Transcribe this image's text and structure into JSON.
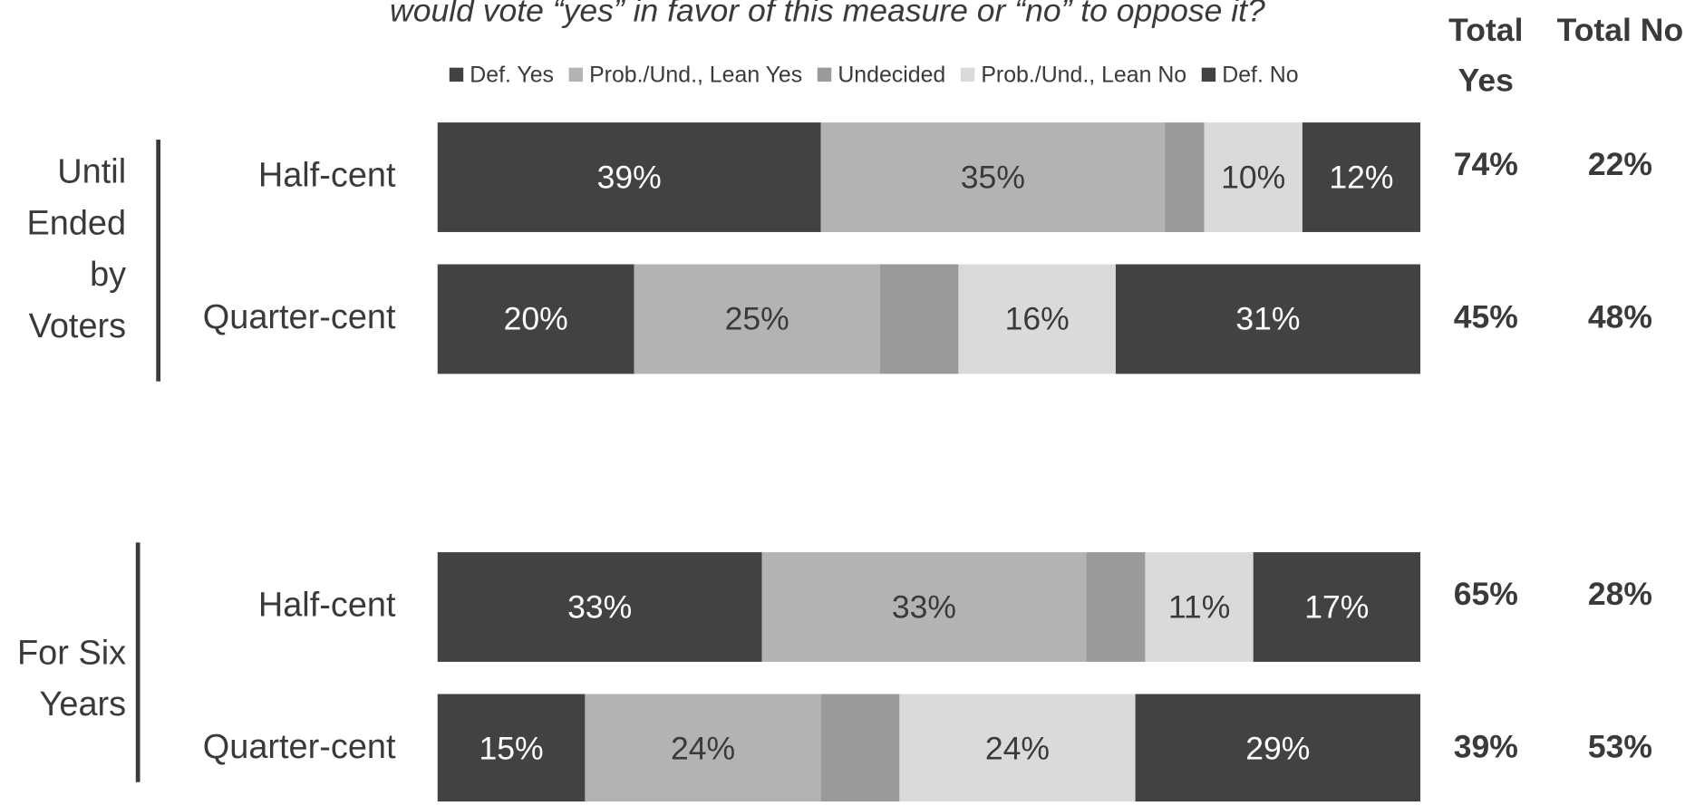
{
  "chart_data": {
    "type": "stacked-bar-horizontal",
    "title": "would vote “yes” in favor of this measure or “no” to oppose it?",
    "groups": [
      {
        "label": "Until Ended by Voters",
        "rows": [
          0,
          1
        ]
      },
      {
        "label": "For Six Years",
        "rows": [
          2,
          3
        ]
      }
    ],
    "categories": [
      "Half-cent",
      "Quarter-cent",
      "Half-cent",
      "Quarter-cent"
    ],
    "xlim": [
      0,
      100
    ],
    "legend": "top",
    "series": [
      {
        "name": "Def. Yes",
        "color": "#424242",
        "values": [
          39,
          20,
          33,
          15
        ],
        "value_labels": [
          "39%",
          "20%",
          "33%",
          "15%"
        ]
      },
      {
        "name": "Prob./Und., Lean Yes",
        "color": "#b3b3b3",
        "values": [
          35,
          25,
          33,
          24
        ],
        "value_labels": [
          "35%",
          "25%",
          "33%",
          "24%"
        ]
      },
      {
        "name": "Undecided",
        "color": "#9a9a9a",
        "values": [
          4,
          8,
          6,
          8
        ]
      },
      {
        "name": "Prob./Und., Lean No",
        "color": "#dadada",
        "values": [
          10,
          16,
          11,
          24
        ],
        "value_labels": [
          "10%",
          "16%",
          "11%",
          "24%"
        ]
      },
      {
        "name": "Def. No",
        "color": "#424242",
        "values": [
          12,
          31,
          17,
          29
        ],
        "value_labels": [
          "12%",
          "31%",
          "17%",
          "29%"
        ]
      }
    ],
    "totals": [
      {
        "label": "Total Yes",
        "values": [
          74,
          45,
          65,
          39
        ],
        "value_labels": [
          "74%",
          "45%",
          "65%",
          "39%"
        ]
      },
      {
        "label": "Total No",
        "values": [
          22,
          48,
          28,
          53
        ],
        "value_labels": [
          "22%",
          "48%",
          "28%",
          "53%"
        ]
      }
    ]
  }
}
